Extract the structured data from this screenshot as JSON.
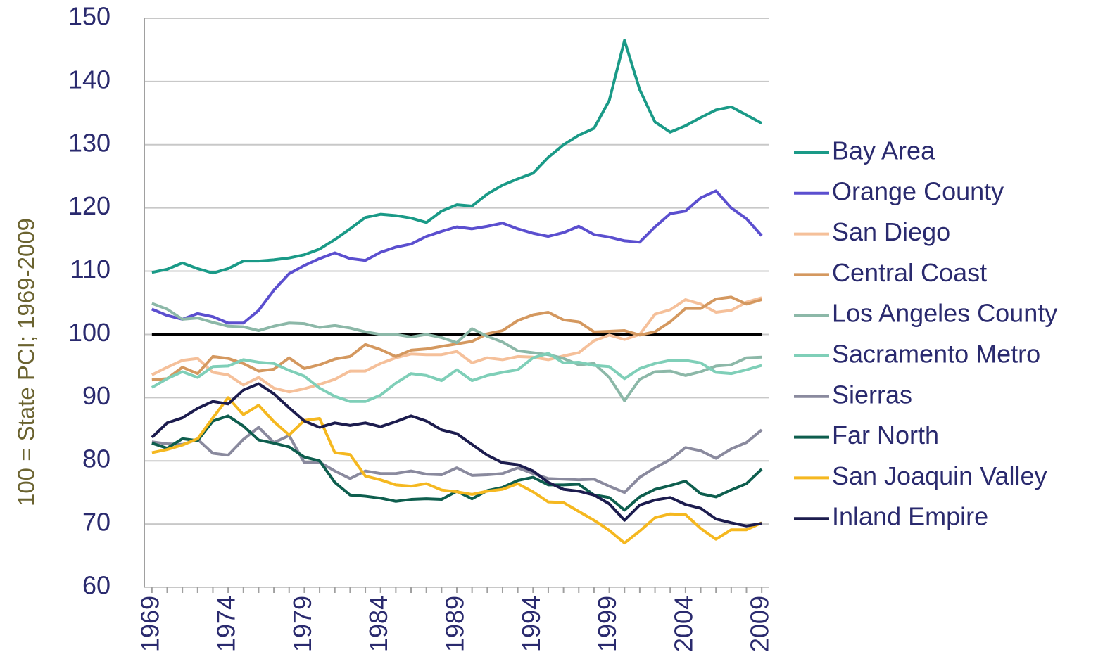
{
  "chart_data": {
    "type": "line",
    "y_axis_label": "100 = State PCI; 1969-2009",
    "x": [
      1969,
      1970,
      1971,
      1972,
      1973,
      1974,
      1975,
      1976,
      1977,
      1978,
      1979,
      1980,
      1981,
      1982,
      1983,
      1984,
      1985,
      1986,
      1987,
      1988,
      1989,
      1990,
      1991,
      1992,
      1993,
      1994,
      1995,
      1996,
      1997,
      1998,
      1999,
      2000,
      2001,
      2002,
      2003,
      2004,
      2005,
      2006,
      2007,
      2008,
      2009
    ],
    "xlim": [
      1968.5,
      2009.5
    ],
    "xticks": [
      1969,
      1974,
      1979,
      1984,
      1989,
      1994,
      1999,
      2004,
      2009
    ],
    "ylim": [
      60,
      150
    ],
    "yticks": [
      60,
      70,
      80,
      90,
      100,
      110,
      120,
      130,
      140,
      150
    ],
    "grid": true,
    "reference_line": {
      "value": 100,
      "color": "#000000"
    },
    "legend": "right",
    "series": [
      {
        "name": "Bay Area",
        "color": "#1a9a87",
        "values": [
          109.8,
          110.3,
          111.3,
          110.4,
          109.7,
          110.4,
          111.6,
          111.6,
          111.8,
          112.1,
          112.6,
          113.5,
          115.0,
          116.7,
          118.5,
          119.0,
          118.8,
          118.4,
          117.7,
          119.5,
          120.5,
          120.3,
          122.2,
          123.6,
          124.6,
          125.5,
          128.0,
          130.0,
          131.5,
          132.6,
          137.0,
          146.5,
          138.7,
          133.6,
          132.0,
          133.0,
          134.3,
          135.5,
          136.0,
          134.7,
          133.4
        ]
      },
      {
        "name": "Orange County",
        "color": "#5b4fcf",
        "values": [
          104.0,
          103.0,
          102.4,
          103.3,
          102.8,
          101.8,
          101.8,
          103.8,
          107.0,
          109.6,
          110.9,
          112.0,
          112.9,
          112.0,
          111.7,
          113.0,
          113.8,
          114.3,
          115.5,
          116.3,
          117.0,
          116.7,
          117.1,
          117.6,
          116.7,
          116.0,
          115.5,
          116.1,
          117.1,
          115.8,
          115.4,
          114.8,
          114.6,
          117.0,
          119.1,
          119.5,
          121.6,
          122.7,
          120.0,
          118.3,
          115.6
        ]
      },
      {
        "name": "San Diego",
        "color": "#f5c09a",
        "values": [
          93.6,
          94.8,
          95.9,
          96.2,
          94.0,
          93.6,
          92.0,
          93.2,
          91.5,
          90.9,
          91.4,
          92.1,
          92.9,
          94.2,
          94.2,
          95.4,
          96.3,
          96.9,
          96.8,
          96.8,
          97.3,
          95.5,
          96.3,
          96.0,
          96.5,
          96.4,
          96.0,
          96.6,
          97.1,
          99.0,
          99.9,
          99.2,
          100.0,
          103.2,
          103.9,
          105.5,
          104.8,
          103.5,
          103.8,
          105.1,
          105.8
        ]
      },
      {
        "name": "Central Coast",
        "color": "#d4985f",
        "values": [
          92.8,
          93.0,
          94.8,
          93.8,
          96.5,
          96.2,
          95.4,
          94.2,
          94.5,
          96.3,
          94.6,
          95.2,
          96.1,
          96.5,
          98.4,
          97.6,
          96.5,
          97.5,
          97.7,
          98.1,
          98.5,
          98.9,
          100.1,
          100.6,
          102.2,
          103.1,
          103.5,
          102.3,
          102.0,
          100.4,
          100.5,
          100.6,
          99.9,
          100.4,
          102.0,
          104.1,
          104.1,
          105.6,
          105.9,
          104.8,
          105.5
        ]
      },
      {
        "name": "Los Angeles County",
        "color": "#8cb8a8",
        "values": [
          104.9,
          104.0,
          102.4,
          102.6,
          101.9,
          101.3,
          101.2,
          100.6,
          101.3,
          101.8,
          101.7,
          101.1,
          101.4,
          101.0,
          100.4,
          100.0,
          100.0,
          99.6,
          100.0,
          99.5,
          98.7,
          100.9,
          99.7,
          98.8,
          97.4,
          97.1,
          96.8,
          96.2,
          95.2,
          95.4,
          93.2,
          89.5,
          92.9,
          94.1,
          94.2,
          93.5,
          94.1,
          95.0,
          95.2,
          96.3,
          96.4
        ]
      },
      {
        "name": "Sacramento Metro",
        "color": "#7fcfb8",
        "values": [
          91.6,
          93.0,
          94.1,
          93.2,
          94.9,
          95.0,
          96.0,
          95.6,
          95.4,
          94.3,
          93.4,
          91.5,
          90.2,
          89.4,
          89.4,
          90.4,
          92.3,
          93.8,
          93.5,
          92.7,
          94.4,
          92.7,
          93.5,
          94.0,
          94.4,
          96.3,
          97.0,
          95.5,
          95.6,
          95.1,
          94.9,
          93.0,
          94.6,
          95.4,
          95.9,
          95.9,
          95.5,
          94.0,
          93.8,
          94.4,
          95.1
        ]
      },
      {
        "name": "Sierras",
        "color": "#8a8a9e",
        "values": [
          83.0,
          82.7,
          82.6,
          83.4,
          81.2,
          80.9,
          83.4,
          85.3,
          82.9,
          84.0,
          79.7,
          79.8,
          78.4,
          77.2,
          78.4,
          78.0,
          78.0,
          78.4,
          77.9,
          77.8,
          78.9,
          77.7,
          77.8,
          78.0,
          78.9,
          78.0,
          77.2,
          77.1,
          77.0,
          77.1,
          76.0,
          75.0,
          77.4,
          78.9,
          80.2,
          82.1,
          81.6,
          80.4,
          81.9,
          82.9,
          84.9
        ]
      },
      {
        "name": "Far North",
        "color": "#0e5e4e",
        "values": [
          82.8,
          82.0,
          83.5,
          83.2,
          86.3,
          87.1,
          85.5,
          83.3,
          82.8,
          82.2,
          80.6,
          80.0,
          76.6,
          74.6,
          74.4,
          74.1,
          73.6,
          73.9,
          74.0,
          73.9,
          75.2,
          74.0,
          75.3,
          75.8,
          76.9,
          77.4,
          76.2,
          76.2,
          76.3,
          74.6,
          74.2,
          72.2,
          74.3,
          75.5,
          76.1,
          76.8,
          74.8,
          74.3,
          75.4,
          76.4,
          78.7
        ]
      },
      {
        "name": "San Joaquin Valley",
        "color": "#f5b820",
        "values": [
          81.3,
          81.8,
          82.5,
          83.5,
          86.8,
          90.0,
          87.3,
          88.8,
          86.2,
          84.1,
          86.4,
          86.7,
          81.3,
          81.0,
          77.6,
          77.0,
          76.2,
          76.0,
          76.4,
          75.4,
          75.1,
          74.7,
          75.2,
          75.5,
          76.4,
          75.1,
          73.5,
          73.4,
          72.0,
          70.6,
          69.0,
          67.0,
          68.9,
          71.0,
          71.6,
          71.5,
          69.3,
          67.6,
          69.1,
          69.1,
          70.2
        ]
      },
      {
        "name": "Inland Empire",
        "color": "#1c1c4e",
        "values": [
          83.7,
          86.0,
          86.8,
          88.3,
          89.4,
          89.0,
          91.2,
          92.2,
          90.6,
          88.4,
          86.3,
          85.3,
          86.0,
          85.6,
          86.0,
          85.4,
          86.2,
          87.1,
          86.3,
          84.9,
          84.3,
          82.6,
          80.9,
          79.7,
          79.4,
          78.4,
          76.6,
          75.5,
          75.2,
          74.6,
          73.2,
          70.6,
          73.0,
          73.8,
          74.2,
          73.1,
          72.5,
          70.8,
          70.2,
          69.7,
          70.1
        ]
      }
    ]
  }
}
